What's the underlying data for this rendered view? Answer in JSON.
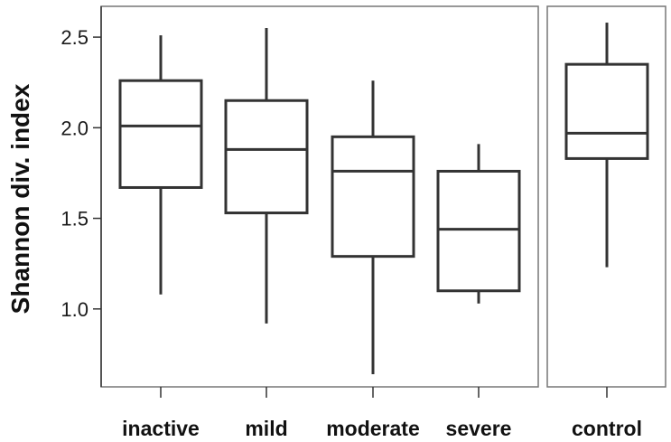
{
  "chart_data": {
    "type": "boxplot",
    "ylabel": "Shannon div. index",
    "ylim": [
      0.57,
      2.67
    ],
    "yticks": [
      {
        "value": 1.0,
        "label": "1.0"
      },
      {
        "value": 1.5,
        "label": "1.5"
      },
      {
        "value": 2.0,
        "label": "2.0"
      },
      {
        "value": 2.5,
        "label": "2.5"
      }
    ],
    "panels": [
      {
        "groups": [
          {
            "category": "inactive",
            "min": 1.08,
            "q1": 1.67,
            "median": 2.01,
            "q3": 2.26,
            "max": 2.51
          },
          {
            "category": "mild",
            "min": 0.92,
            "q1": 1.53,
            "median": 1.88,
            "q3": 2.15,
            "max": 2.55
          },
          {
            "category": "moderate",
            "min": 0.64,
            "q1": 1.29,
            "median": 1.76,
            "q3": 1.95,
            "max": 2.26
          },
          {
            "category": "severe",
            "min": 1.03,
            "q1": 1.1,
            "median": 1.44,
            "q3": 1.76,
            "max": 1.91
          }
        ]
      },
      {
        "groups": [
          {
            "category": "control",
            "min": 1.23,
            "q1": 1.83,
            "median": 1.97,
            "q3": 2.35,
            "max": 2.58
          }
        ]
      }
    ],
    "colors": {
      "box": "#333333",
      "frame": "#777777"
    }
  }
}
